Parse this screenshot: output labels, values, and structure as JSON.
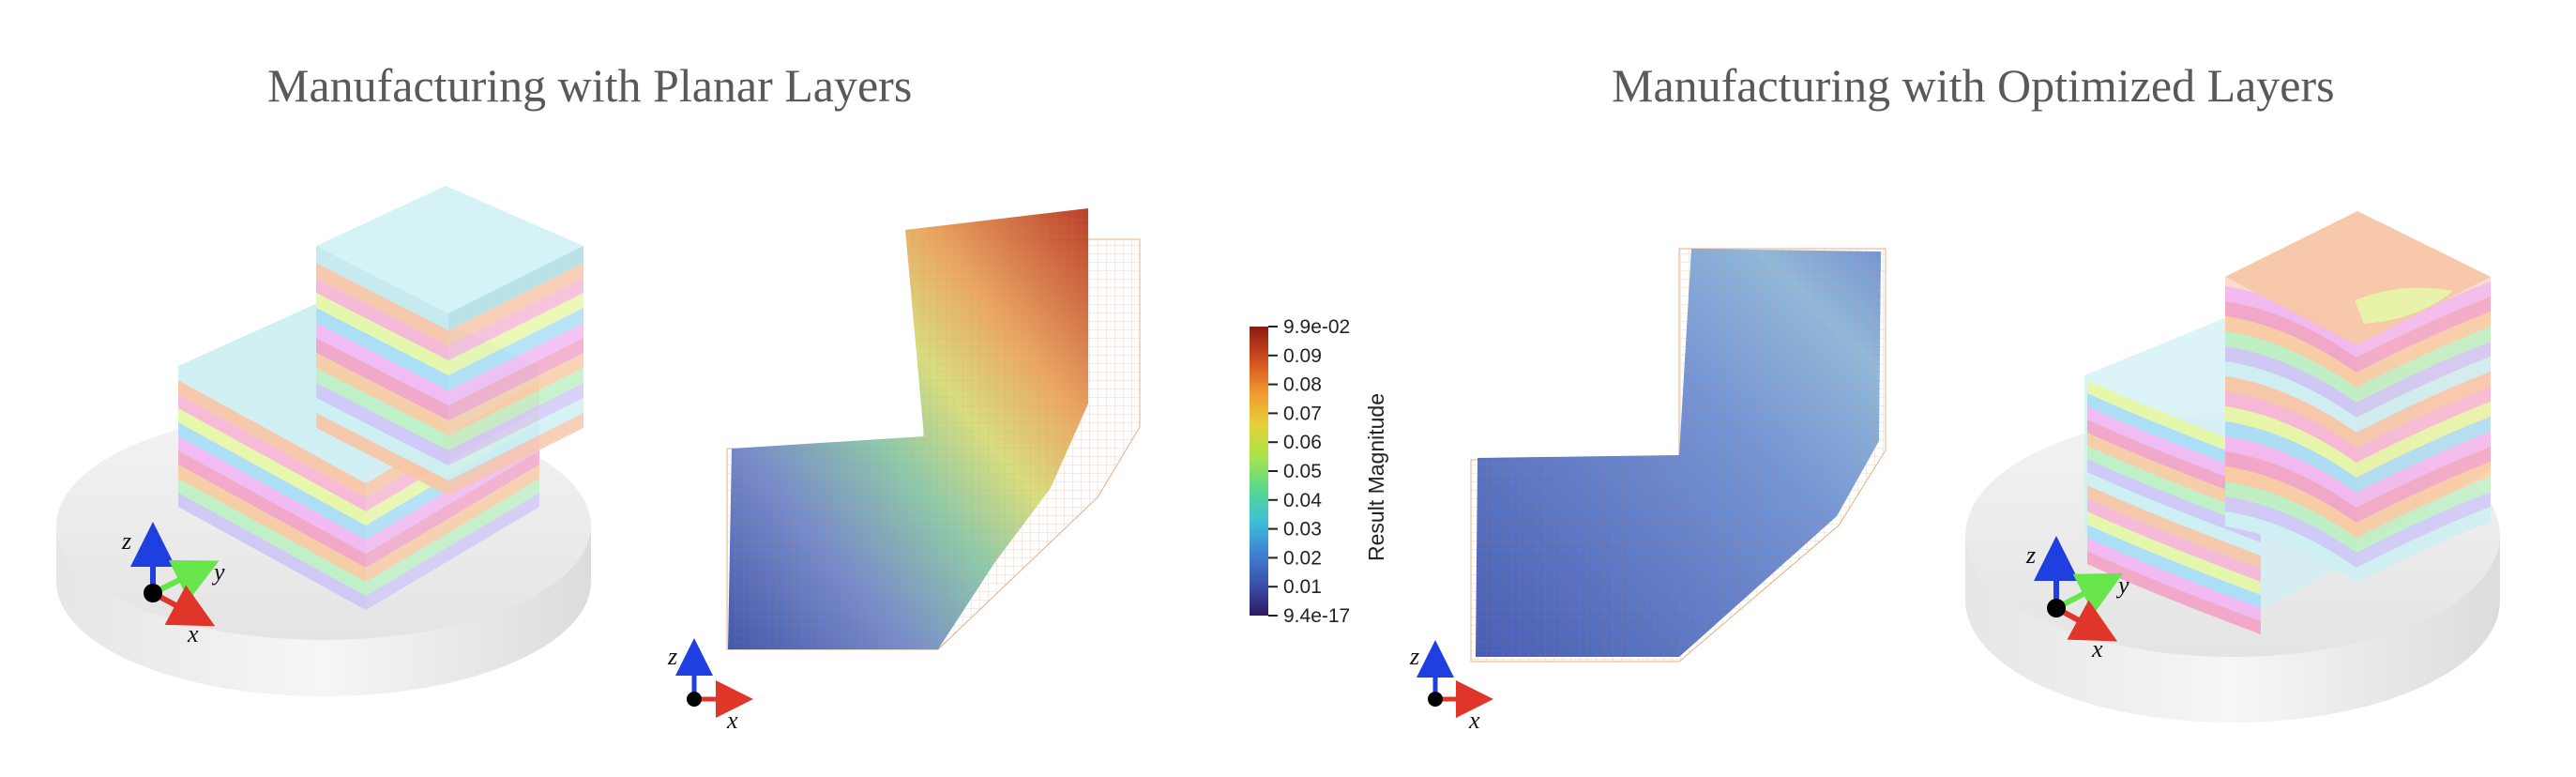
{
  "titles": {
    "left": "Manufacturing with Planar Layers",
    "right": "Manufacturing with Optimized Layers"
  },
  "axes": {
    "z": "z",
    "y": "y",
    "x": "x"
  },
  "colorbar": {
    "title": "Result Magnitude",
    "ticks": [
      "9.9e-02",
      "0.09",
      "0.08",
      "0.07",
      "0.06",
      "0.05",
      "0.04",
      "0.03",
      "0.02",
      "0.01",
      "9.4e-17"
    ]
  },
  "colors": {
    "axis_z": "#1f3fe0",
    "axis_y": "#66e64a",
    "axis_x": "#e0362a",
    "layers": [
      "#cdeff3",
      "#f7c6a8",
      "#f7b6d5",
      "#e6f7a8",
      "#a9ddf7",
      "#f2b7f2",
      "#f1a4c7",
      "#f8cba4",
      "#bdf0c4",
      "#cfc7f7"
    ]
  }
}
